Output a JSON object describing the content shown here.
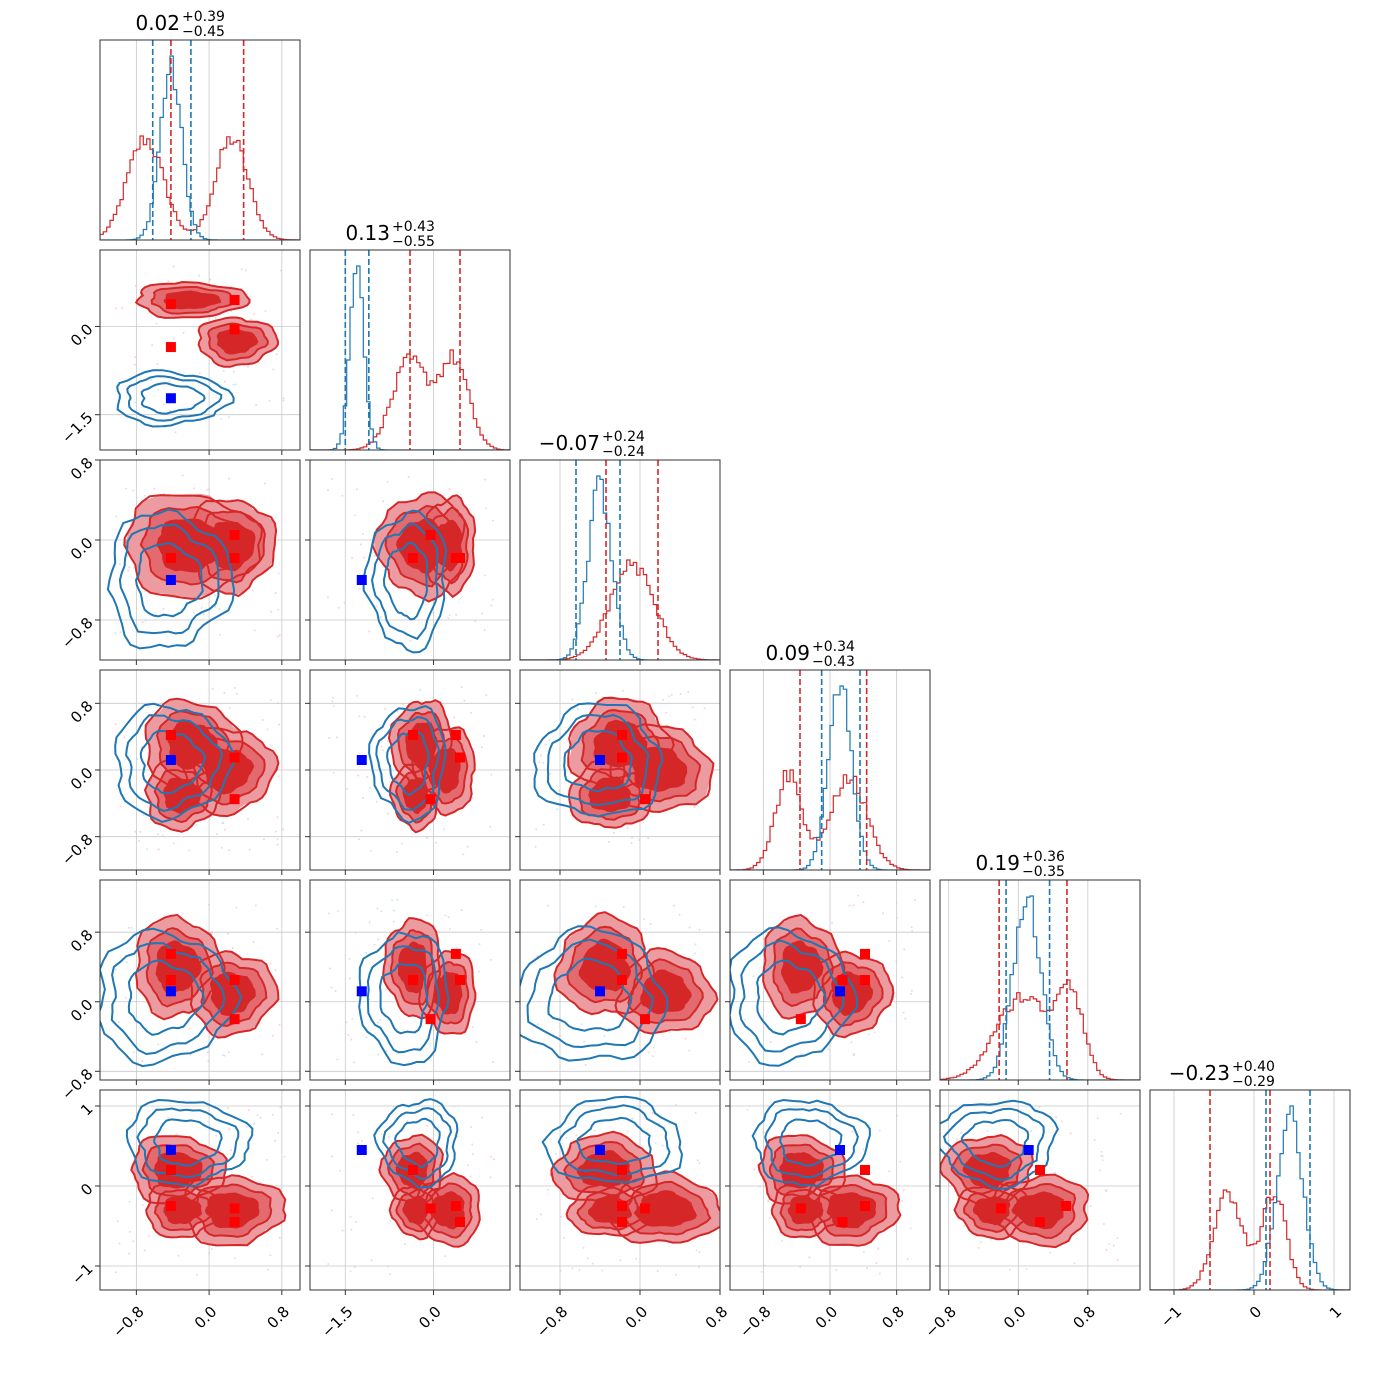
{
  "chart_data": {
    "type": "corner",
    "parameters": 6,
    "grid": true,
    "colors": {
      "A": "#d62728",
      "B": "#1f77b4",
      "truth_A": "#ff0000",
      "truth_B": "#0000ff"
    },
    "ranges": [
      [
        -1.2,
        1.0
      ],
      [
        -2.1,
        1.3
      ],
      [
        -1.2,
        0.8
      ],
      [
        -1.2,
        1.2
      ],
      [
        -0.9,
        1.4
      ],
      [
        -1.3,
        1.2
      ]
    ],
    "ticks": [
      {
        "values": [
          -0.8,
          0.0,
          0.8
        ],
        "labels": [
          "−0.8",
          "0.0",
          "0.8"
        ]
      },
      {
        "values": [
          -1.5,
          0.0
        ],
        "labels": [
          "−1.5",
          "0.0"
        ]
      },
      {
        "values": [
          -0.8,
          0.0,
          0.8
        ],
        "labels": [
          "−0.8",
          "0.0",
          "0.8"
        ]
      },
      {
        "values": [
          -0.8,
          0.0,
          0.8
        ],
        "labels": [
          "−0.8",
          "0.0",
          "0.8"
        ]
      },
      {
        "values": [
          -0.8,
          0.0,
          0.8
        ],
        "labels": [
          "−0.8",
          "0.0",
          "0.8"
        ]
      },
      {
        "values": [
          -1,
          0,
          1
        ],
        "labels": [
          "−1",
          "0",
          "1"
        ]
      }
    ],
    "titles": [
      {
        "value": "0.02",
        "plus": "+0.39",
        "minus": "−0.45"
      },
      {
        "value": "0.13",
        "plus": "+0.43",
        "minus": "−0.55"
      },
      {
        "value": "−0.07",
        "plus": "+0.24",
        "minus": "−0.24"
      },
      {
        "value": "0.09",
        "plus": "+0.34",
        "minus": "−0.43"
      },
      {
        "value": "0.19",
        "plus": "+0.36",
        "minus": "−0.35"
      },
      {
        "value": "−0.23",
        "plus": "+0.40",
        "minus": "−0.29"
      }
    ],
    "quantiles_A": [
      [
        -0.42,
        0.38
      ],
      [
        -0.4,
        0.45
      ],
      [
        -0.34,
        0.18
      ],
      [
        -0.36,
        0.44
      ],
      [
        -0.22,
        0.56
      ],
      [
        -0.55,
        0.2
      ]
    ],
    "quantiles_B": [
      [
        -0.62,
        -0.2
      ],
      [
        -1.5,
        -1.1
      ],
      [
        -0.64,
        -0.2
      ],
      [
        -0.1,
        0.36
      ],
      [
        -0.14,
        0.36
      ],
      [
        0.15,
        0.7
      ]
    ],
    "truth_A": [
      [
        -0.42,
        0.28,
        0.28,
        -0.42
      ],
      [
        0.38,
        0.45,
        -0.05,
        -0.35
      ],
      [
        -0.18,
        -0.18,
        0.05,
        -0.18
      ],
      [
        0.42,
        0.15,
        -0.35,
        0.42
      ],
      [
        0.55,
        0.25,
        -0.2,
        0.25
      ],
      [
        -0.25,
        -0.45,
        -0.28,
        0.2
      ]
    ],
    "truth_B": [
      -0.42,
      -1.22,
      -0.4,
      0.12,
      0.12,
      0.45
    ],
    "hist_A": [
      [
        [
          -0.7,
          0.2
        ],
        [
          0.25,
          0.18
        ]
      ],
      [
        [
          -0.4,
          0.3
        ],
        [
          0.35,
          0.25
        ]
      ],
      [
        [
          -0.08,
          0.22
        ]
      ],
      [
        [
          -0.5,
          0.16
        ],
        [
          0.22,
          0.22
        ]
      ],
      [
        [
          0.05,
          0.3
        ],
        [
          0.6,
          0.15
        ]
      ],
      [
        [
          -0.32,
          0.18
        ],
        [
          0.25,
          0.15
        ]
      ]
    ],
    "hist_B": [
      [
        [
          -0.42,
          0.12
        ]
      ],
      [
        [
          -1.3,
          0.12
        ]
      ],
      [
        [
          -0.4,
          0.12
        ]
      ],
      [
        [
          0.12,
          0.14
        ]
      ],
      [
        [
          0.1,
          0.16
        ]
      ],
      [
        [
          0.45,
          0.16
        ]
      ]
    ],
    "blob_A": [
      [],
      [
        [
          -0.2,
          0.45,
          0.45,
          0.22
        ],
        [
          0.3,
          -0.25,
          0.32,
          0.3
        ]
      ],
      [
        [
          -0.2,
          -0.05,
          0.55,
          0.38
        ],
        [
          0.25,
          -0.05,
          0.35,
          0.35
        ]
      ],
      [
        [
          -0.2,
          0.3,
          0.38,
          0.4
        ],
        [
          0.2,
          0.0,
          0.38,
          0.38
        ],
        [
          -0.3,
          -0.3,
          0.3,
          0.3
        ]
      ],
      [
        [
          -0.35,
          0.4,
          0.35,
          0.42
        ],
        [
          0.25,
          0.1,
          0.35,
          0.35
        ]
      ],
      [
        [
          -0.35,
          0.2,
          0.38,
          0.32
        ],
        [
          0.25,
          -0.3,
          0.42,
          0.32
        ],
        [
          -0.3,
          -0.3,
          0.3,
          0.25
        ]
      ]
    ],
    "blob_B": [
      [],
      [
        [
          -0.42,
          -1.22,
          0.42,
          0.3
        ]
      ],
      [
        [
          -0.45,
          -0.4,
          0.45,
          0.45
        ]
      ],
      [
        [
          -0.42,
          0.1,
          0.42,
          0.45
        ]
      ],
      [
        [
          -0.5,
          0.05,
          0.5,
          0.5
        ]
      ],
      [
        [
          -0.25,
          0.55,
          0.45,
          0.35
        ]
      ]
    ]
  }
}
